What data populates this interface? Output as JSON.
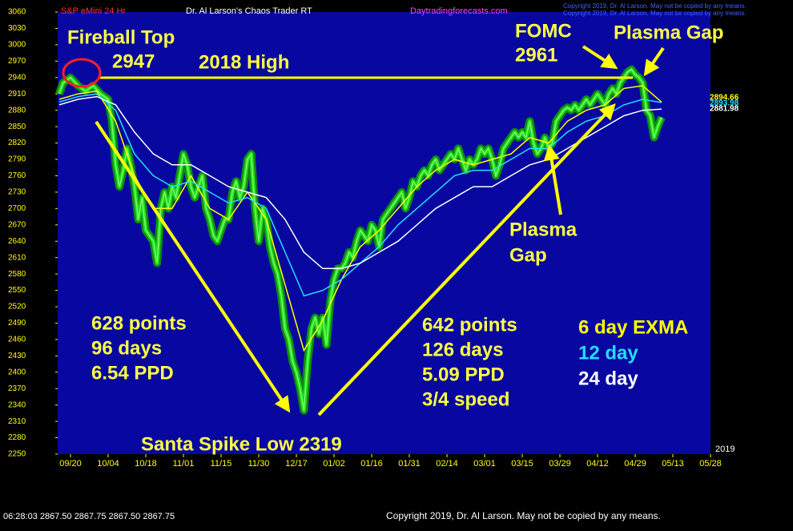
{
  "chart_data": {
    "type": "line",
    "title": "S&P eMini 24 Hr",
    "subtitle": "Dr. Al Larson's Chaos Trader RT",
    "website": "Daytradingforecasts.com",
    "copyright_top": "Copyright 2019, Dr. Al Larson. May not be copied by any means.",
    "copyright_bottom": "Copyright 2019, Dr. Al Larson. May not be copied by any means.",
    "year_label": "2019",
    "status_line": "06:28:03  2867.50 2867.75 2867.50 2867.75",
    "ylim": [
      2250,
      3060
    ],
    "yticks": [
      3060,
      3030,
      3000,
      2970,
      2940,
      2910,
      2880,
      2850,
      2820,
      2790,
      2760,
      2730,
      2700,
      2670,
      2640,
      2610,
      2580,
      2550,
      2520,
      2490,
      2460,
      2430,
      2400,
      2370,
      2340,
      2310,
      2280,
      2250
    ],
    "xlim": [
      -3.4,
      170
    ],
    "xticks": [
      {
        "value": 0,
        "label": "09/20"
      },
      {
        "value": 10,
        "label": "10/04"
      },
      {
        "value": 20,
        "label": "10/18"
      },
      {
        "value": 30,
        "label": "11/01"
      },
      {
        "value": 40,
        "label": "11/15"
      },
      {
        "value": 50,
        "label": "11/30"
      },
      {
        "value": 60,
        "label": "12/17"
      },
      {
        "value": 70,
        "label": "01/02"
      },
      {
        "value": 80,
        "label": "01/16"
      },
      {
        "value": 90,
        "label": "01/31"
      },
      {
        "value": 100,
        "label": "02/14"
      },
      {
        "value": 110,
        "label": "03/01"
      },
      {
        "value": 120,
        "label": "03/15"
      },
      {
        "value": 130,
        "label": "03/29"
      },
      {
        "value": 140,
        "label": "04/12"
      },
      {
        "value": 150,
        "label": "04/29"
      },
      {
        "value": 160,
        "label": "05/13"
      },
      {
        "value": 170,
        "label": "05/28"
      }
    ],
    "series": [
      {
        "color": "#22dd22",
        "x": [
          -3,
          -2,
          0,
          2,
          4,
          6,
          8,
          10,
          11,
          12,
          13,
          14,
          15,
          16,
          17,
          18,
          19,
          20,
          21,
          22,
          23,
          24,
          25,
          26,
          27,
          28,
          29,
          30,
          31,
          32,
          33,
          34,
          35,
          36,
          37,
          38,
          39,
          40,
          41,
          42,
          43,
          44,
          45,
          46,
          47,
          48,
          49,
          50,
          51,
          52,
          53,
          54,
          55,
          56,
          57,
          58,
          59,
          60,
          61,
          62,
          63,
          64,
          65,
          66,
          67,
          68,
          69,
          70,
          71,
          72,
          73,
          74,
          75,
          76,
          77,
          78,
          79,
          80,
          81,
          82,
          83,
          84,
          85,
          86,
          87,
          88,
          89,
          90,
          91,
          92,
          93,
          94,
          95,
          96,
          97,
          98,
          99,
          100,
          101,
          102,
          103,
          104,
          105,
          106,
          107,
          108,
          109,
          110,
          111,
          112,
          113,
          114,
          115,
          116,
          117,
          118,
          119,
          120,
          121,
          122,
          123,
          124,
          125,
          126,
          127,
          128,
          129,
          130,
          131,
          132,
          133,
          134,
          135,
          136,
          137,
          138,
          139,
          140,
          141,
          142,
          143,
          144,
          145,
          146,
          147,
          148,
          149,
          150,
          151,
          152,
          153,
          154,
          155,
          156,
          157
        ],
        "values": [
          2910,
          2930,
          2940,
          2925,
          2915,
          2925,
          2910,
          2900,
          2860,
          2780,
          2740,
          2770,
          2810,
          2780,
          2740,
          2680,
          2720,
          2660,
          2650,
          2640,
          2600,
          2700,
          2730,
          2700,
          2740,
          2720,
          2760,
          2800,
          2780,
          2740,
          2720,
          2740,
          2760,
          2700,
          2680,
          2650,
          2640,
          2660,
          2680,
          2680,
          2730,
          2750,
          2720,
          2740,
          2790,
          2800,
          2700,
          2640,
          2700,
          2680,
          2630,
          2600,
          2580,
          2540,
          2480,
          2460,
          2420,
          2400,
          2370,
          2330,
          2420,
          2480,
          2500,
          2470,
          2500,
          2450,
          2530,
          2570,
          2590,
          2590,
          2600,
          2620,
          2610,
          2640,
          2660,
          2650,
          2640,
          2670,
          2660,
          2630,
          2680,
          2690,
          2700,
          2710,
          2720,
          2730,
          2700,
          2720,
          2750,
          2740,
          2760,
          2770,
          2760,
          2780,
          2790,
          2770,
          2780,
          2790,
          2800,
          2790,
          2810,
          2790,
          2770,
          2790,
          2780,
          2790,
          2810,
          2800,
          2810,
          2790,
          2760,
          2780,
          2810,
          2820,
          2830,
          2840,
          2830,
          2840,
          2830,
          2860,
          2820,
          2800,
          2810,
          2830,
          2810,
          2820,
          2860,
          2870,
          2880,
          2885,
          2880,
          2890,
          2880,
          2890,
          2900,
          2890,
          2900,
          2910,
          2900,
          2890,
          2910,
          2920,
          2910,
          2930,
          2940,
          2950,
          2955,
          2945,
          2940,
          2930,
          2880,
          2870,
          2830,
          2850,
          2867
        ]
      },
      {
        "name": "6 day EXMA",
        "color": "#ffff00",
        "end_label": "2894.66",
        "x": [
          -3,
          2,
          7,
          12,
          17,
          22,
          27,
          32,
          37,
          42,
          47,
          52,
          57,
          62,
          67,
          72,
          77,
          82,
          87,
          92,
          97,
          102,
          107,
          112,
          117,
          122,
          127,
          132,
          137,
          142,
          147,
          152,
          157
        ],
        "values": [
          2900,
          2910,
          2915,
          2860,
          2760,
          2700,
          2700,
          2760,
          2700,
          2680,
          2730,
          2680,
          2560,
          2440,
          2495,
          2570,
          2630,
          2660,
          2700,
          2740,
          2770,
          2790,
          2780,
          2790,
          2800,
          2830,
          2820,
          2860,
          2880,
          2890,
          2920,
          2925,
          2895
        ]
      },
      {
        "name": "12 day",
        "color": "#22ddff",
        "end_label": "2893.98",
        "x": [
          -3,
          2,
          7,
          12,
          17,
          22,
          27,
          32,
          37,
          42,
          47,
          52,
          57,
          62,
          67,
          72,
          77,
          82,
          87,
          92,
          97,
          102,
          107,
          112,
          117,
          122,
          127,
          132,
          137,
          142,
          147,
          152,
          157
        ],
        "values": [
          2895,
          2905,
          2910,
          2880,
          2800,
          2760,
          2740,
          2750,
          2730,
          2710,
          2720,
          2700,
          2620,
          2540,
          2550,
          2570,
          2600,
          2630,
          2670,
          2700,
          2730,
          2760,
          2770,
          2770,
          2790,
          2810,
          2810,
          2840,
          2860,
          2870,
          2890,
          2900,
          2894
        ]
      },
      {
        "name": "24 day",
        "color": "#ffffff",
        "end_label": "2881.98",
        "x": [
          -3,
          2,
          7,
          12,
          17,
          22,
          27,
          32,
          37,
          42,
          47,
          52,
          57,
          62,
          67,
          72,
          77,
          82,
          87,
          92,
          97,
          102,
          107,
          112,
          117,
          122,
          127,
          132,
          137,
          142,
          147,
          152,
          157
        ],
        "values": [
          2890,
          2900,
          2905,
          2890,
          2840,
          2800,
          2780,
          2780,
          2760,
          2740,
          2730,
          2720,
          2680,
          2620,
          2590,
          2590,
          2600,
          2620,
          2640,
          2670,
          2700,
          2720,
          2740,
          2740,
          2760,
          2780,
          2790,
          2810,
          2830,
          2850,
          2870,
          2880,
          2882
        ]
      }
    ],
    "annotations": {
      "fireball": "Fireball Top",
      "fireball_value": "2947",
      "high": "2018 High",
      "fomc": "FOMC",
      "fomc_value": "2961",
      "plasma_gap_top": "Plasma Gap",
      "plasma_gap_low": [
        "Plasma",
        "Gap"
      ],
      "drop": [
        "628 points",
        "96 days",
        "6.54 PPD"
      ],
      "rise": [
        "642 points",
        "126 days",
        "5.09 PPD",
        "3/4 speed"
      ],
      "low": "Santa Spike Low 2319"
    }
  }
}
